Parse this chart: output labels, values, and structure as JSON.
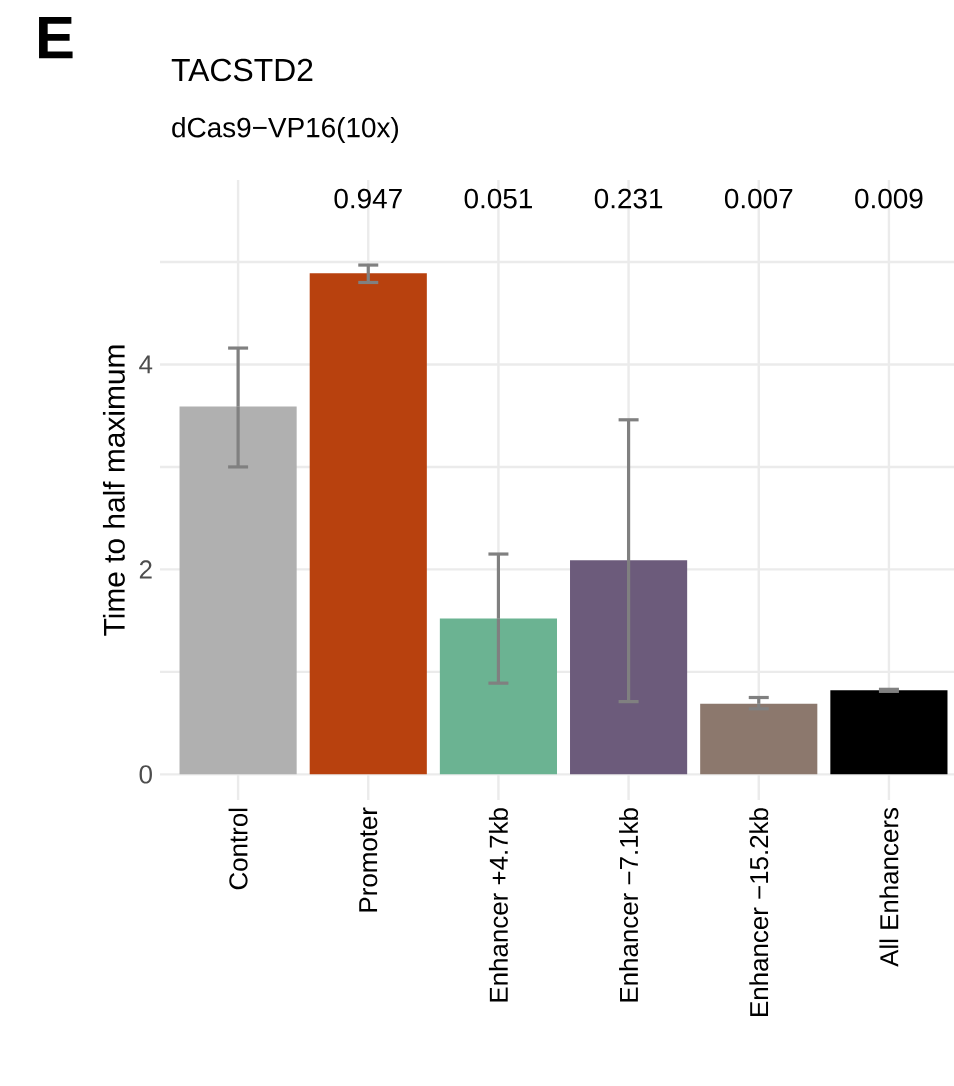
{
  "chart_data": {
    "type": "bar",
    "title": "TACSTD2",
    "subtitle": "dCas9−VP16(10x)",
    "ylabel": "Time to half maximum",
    "categories": [
      "Control",
      "Promoter",
      "Enhancer +4.7kb",
      "Enhancer −7.1kb",
      "Enhancer −15.2kb",
      "All Enhancers"
    ],
    "values": [
      3.59,
      4.89,
      1.52,
      2.09,
      0.69,
      0.82
    ],
    "colors": [
      "#b0b0b0",
      "#b8410e",
      "#6bb392",
      "#6c5b7b",
      "#8c786d",
      "#000000"
    ],
    "errors": [
      [
        3.0,
        4.16
      ],
      [
        4.8,
        4.97
      ],
      [
        0.89,
        2.15
      ],
      [
        0.71,
        3.46
      ],
      [
        0.64,
        0.75
      ],
      [
        0.81,
        0.83
      ]
    ],
    "ylim": [
      -0.25,
      5.8
    ],
    "yticks": [
      0,
      {
        "value": 1,
        "label": null
      },
      2,
      {
        "value": 3,
        "label": null
      },
      4,
      {
        "value": 5,
        "label": null
      }
    ],
    "grid": true,
    "annotations": [
      "E",
      "0.947",
      "0.051",
      "0.231",
      "0.007",
      "0.009"
    ]
  }
}
